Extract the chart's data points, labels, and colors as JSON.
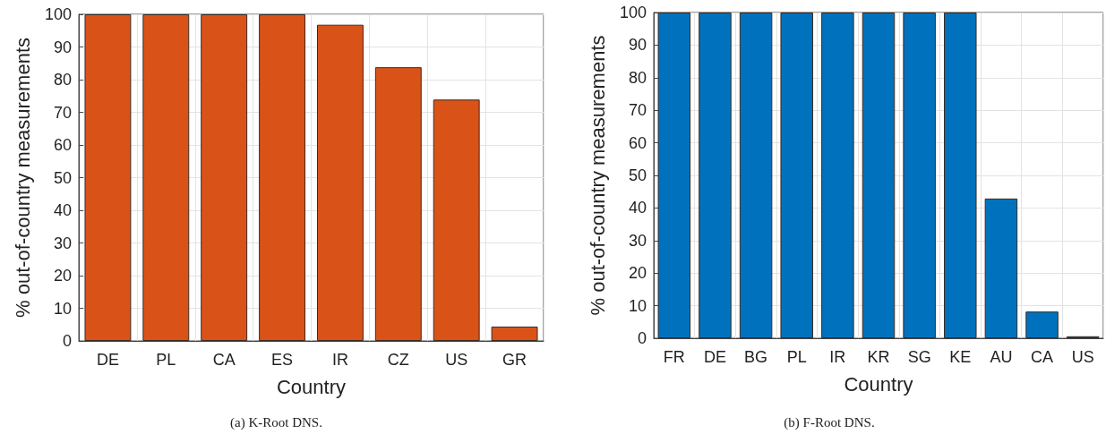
{
  "chart_data": [
    {
      "type": "bar",
      "xlabel": "Country",
      "ylabel": "% out-of-country measurements",
      "categories": [
        "DE",
        "PL",
        "CA",
        "ES",
        "IR",
        "CZ",
        "US",
        "GR"
      ],
      "series": [
        {
          "color": "#d95319",
          "values": [
            100,
            100,
            100,
            100,
            96.8,
            83.8,
            73.9,
            4.4
          ]
        }
      ],
      "ylim": [
        0,
        100
      ],
      "yticks": [
        0,
        10,
        20,
        30,
        40,
        50,
        60,
        70,
        80,
        90,
        100
      ],
      "grid": true,
      "annotations": [
        "(a) K-Root DNS."
      ]
    },
    {
      "type": "bar",
      "xlabel": "Country",
      "ylabel": "% out-of-country measurements",
      "categories": [
        "FR",
        "DE",
        "BG",
        "PL",
        "IR",
        "KR",
        "SG",
        "KE",
        "AU",
        "CA",
        "US"
      ],
      "series": [
        {
          "color": "#0072bd",
          "values": [
            100,
            100,
            100,
            100,
            100,
            100,
            100,
            100,
            42.9,
            8.2,
            0.6
          ]
        }
      ],
      "ylim": [
        0,
        100
      ],
      "yticks": [
        0,
        10,
        20,
        30,
        40,
        50,
        60,
        70,
        80,
        90,
        100
      ],
      "grid": true,
      "annotations": [
        "(b) F-Root DNS."
      ]
    }
  ]
}
